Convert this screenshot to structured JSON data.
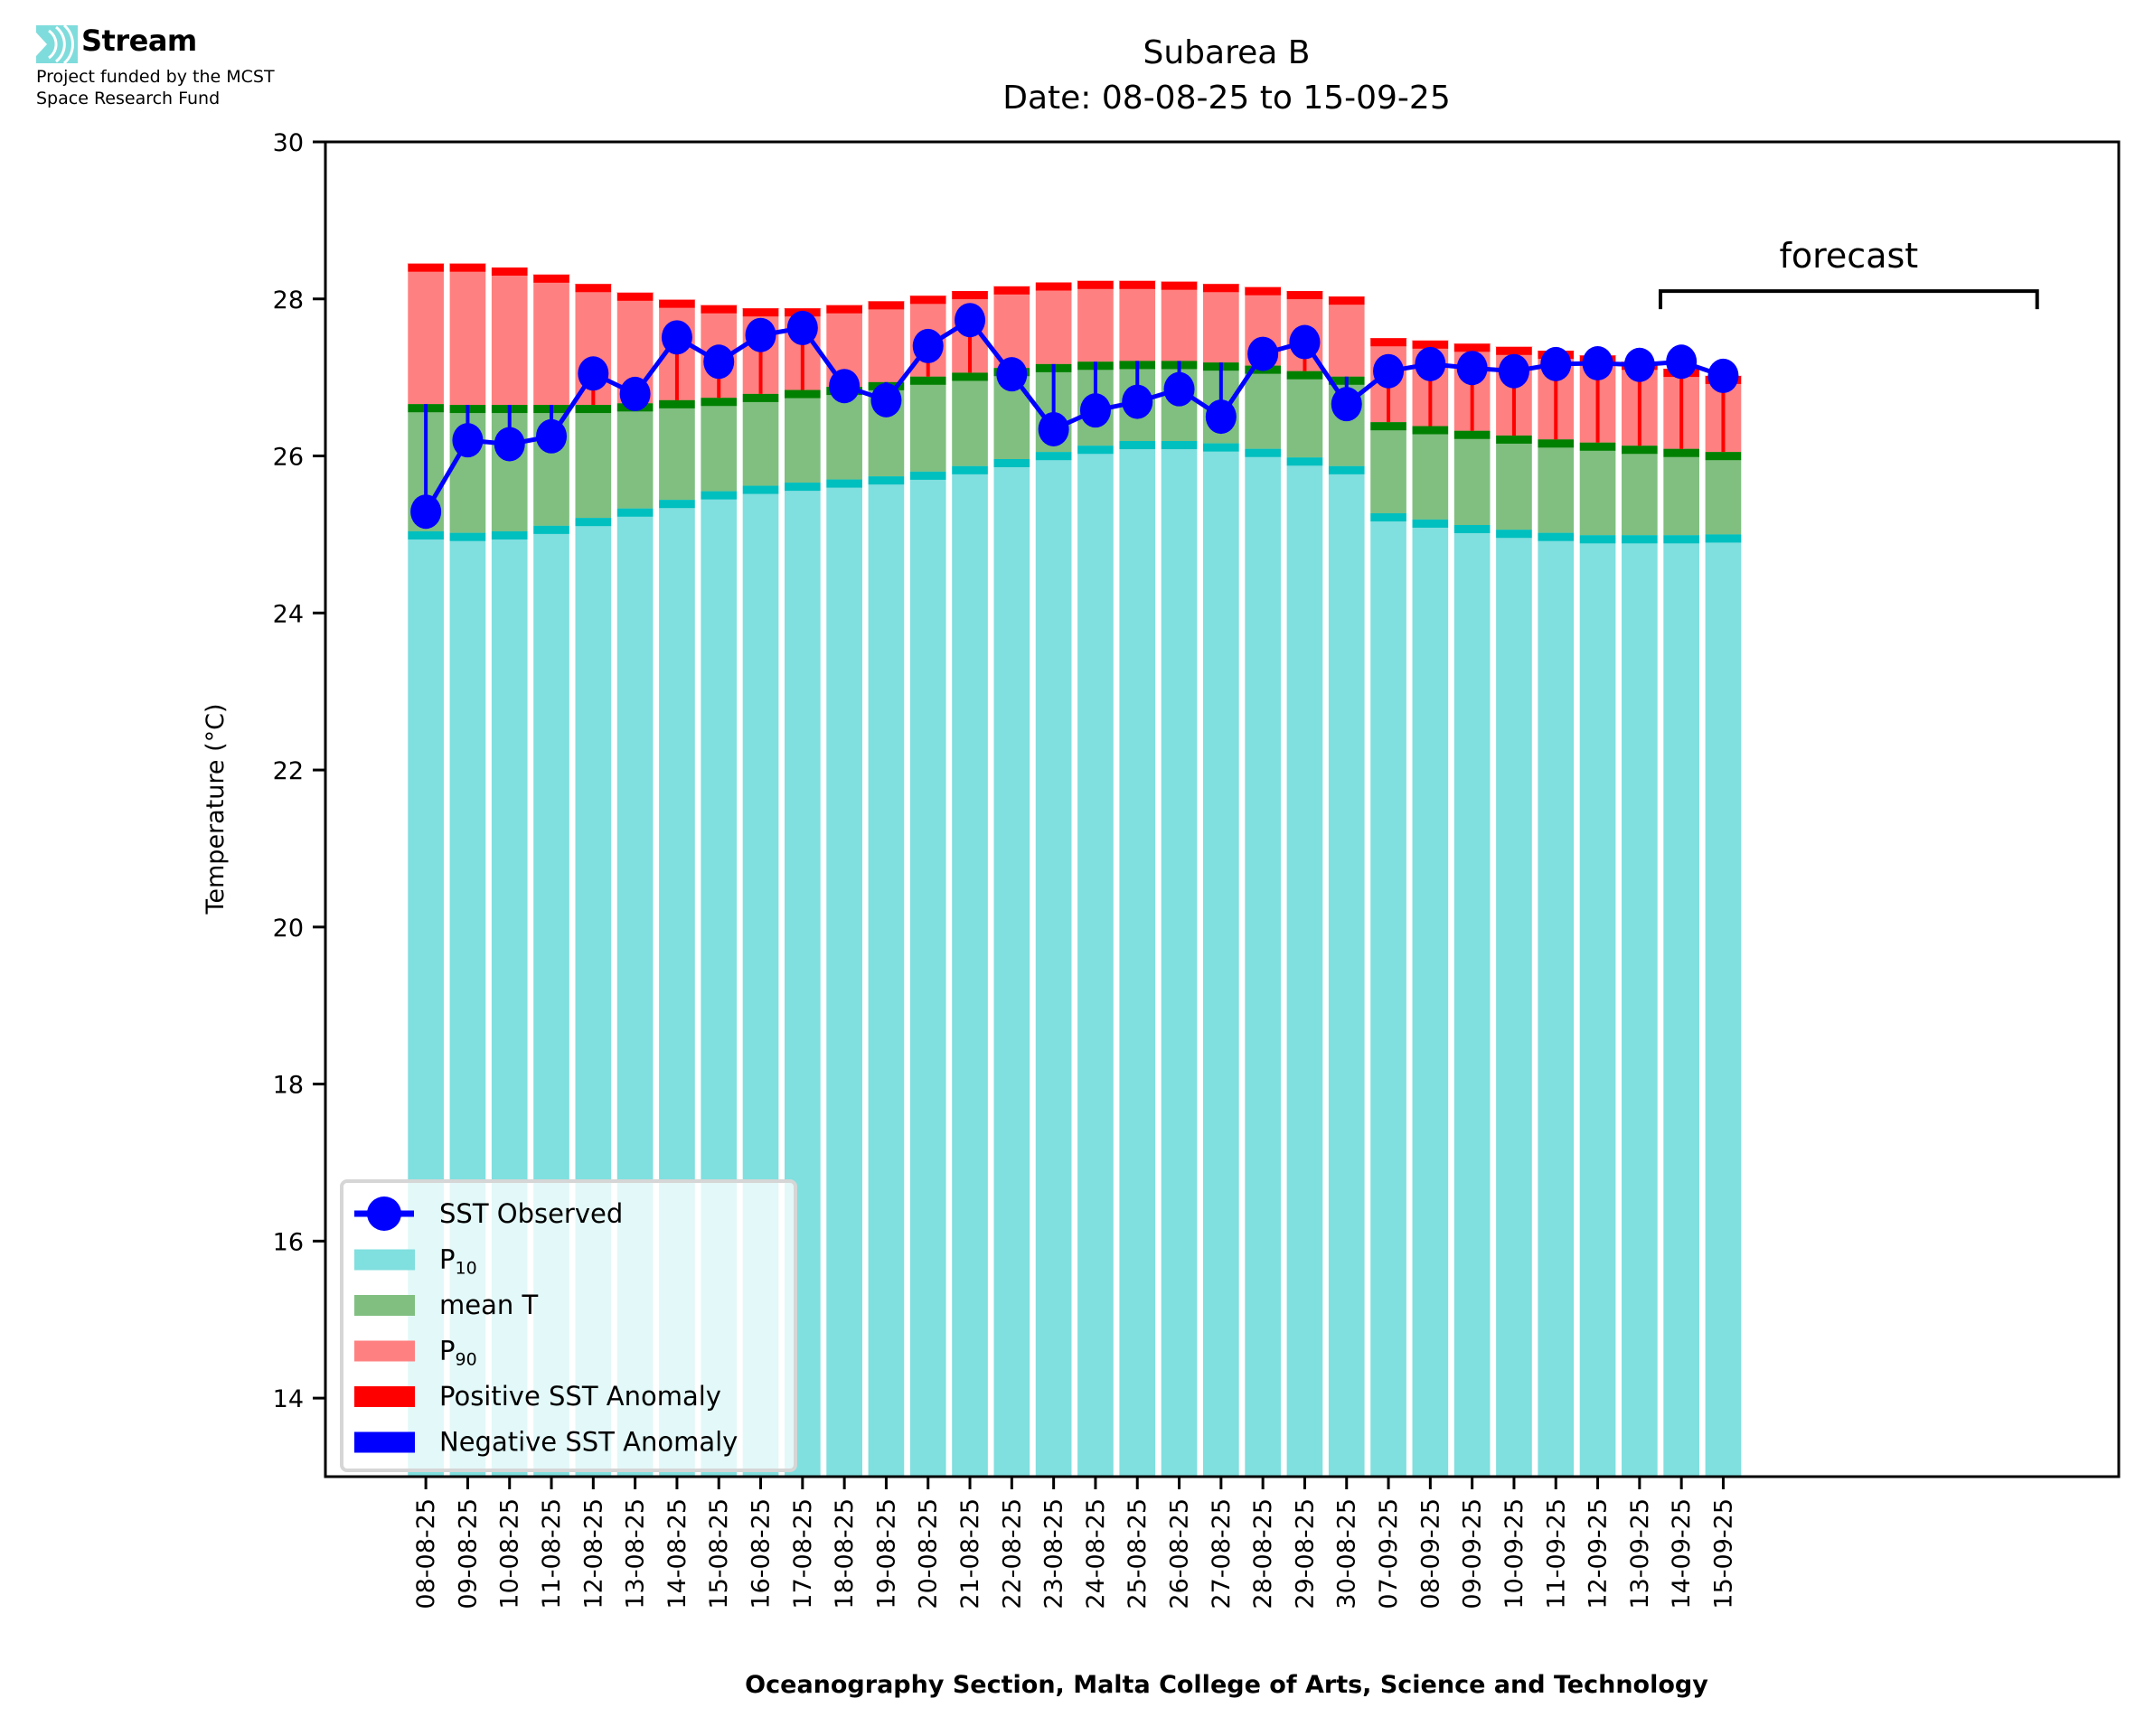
{
  "branding": {
    "name": "Stream",
    "subtitle_line1": "Project funded by the MCST",
    "subtitle_line2": "Space Research Fund",
    "logo_icon": "stream-waves-icon",
    "accent_color": "#7fdcdc"
  },
  "footer": "Oceanography Section, Malta College of Arts, Science and Technology",
  "chart_data": {
    "type": "bar",
    "title": "Subarea B",
    "subtitle": "Date: 08-08-25 to 15-09-25",
    "xlabel": "",
    "ylabel": "Temperature (°C)",
    "ylim": [
      13,
      30
    ],
    "xlim": [
      -2.4,
      40.45
    ],
    "yticks": [
      14,
      16,
      18,
      20,
      22,
      24,
      26,
      28,
      30
    ],
    "grid": false,
    "stacked_overlay": true,
    "categories": [
      "08-08-25",
      "09-08-25",
      "10-08-25",
      "11-08-25",
      "12-08-25",
      "13-08-25",
      "14-08-25",
      "15-08-25",
      "16-08-25",
      "17-08-25",
      "18-08-25",
      "19-08-25",
      "20-08-25",
      "21-08-25",
      "22-08-25",
      "23-08-25",
      "24-08-25",
      "25-08-25",
      "26-08-25",
      "27-08-25",
      "28-08-25",
      "29-08-25",
      "30-08-25",
      "07-09-25",
      "08-09-25",
      "09-09-25",
      "10-09-25",
      "11-09-25",
      "12-09-25",
      "13-09-25",
      "14-09-25",
      "15-09-25"
    ],
    "series": [
      {
        "name": "P10",
        "label_base": "P",
        "label_sub": "10",
        "kind": "bar",
        "color": "#80dfdf",
        "band_color": "#00bfbf",
        "values": [
          25.04,
          25.02,
          25.04,
          25.11,
          25.21,
          25.33,
          25.44,
          25.55,
          25.62,
          25.66,
          25.7,
          25.74,
          25.8,
          25.87,
          25.96,
          26.05,
          26.13,
          26.19,
          26.19,
          26.16,
          26.09,
          25.98,
          25.87,
          25.27,
          25.19,
          25.12,
          25.06,
          25.02,
          24.99,
          24.99,
          24.99,
          25.0
        ]
      },
      {
        "name": "mean T",
        "label_base": "mean T",
        "label_sub": "",
        "kind": "bar",
        "color": "#80bf80",
        "band_color": "#008000",
        "values": [
          26.66,
          26.65,
          26.65,
          26.65,
          26.65,
          26.67,
          26.71,
          26.74,
          26.79,
          26.84,
          26.88,
          26.94,
          27.01,
          27.06,
          27.12,
          27.17,
          27.2,
          27.21,
          27.21,
          27.19,
          27.15,
          27.08,
          27.01,
          26.43,
          26.38,
          26.32,
          26.26,
          26.21,
          26.17,
          26.13,
          26.09,
          26.05
        ]
      },
      {
        "name": "P90",
        "label_base": "P",
        "label_sub": "90",
        "kind": "bar",
        "color": "#ff8080",
        "band_color": "#ff0000",
        "values": [
          28.45,
          28.45,
          28.4,
          28.31,
          28.19,
          28.08,
          27.99,
          27.92,
          27.88,
          27.88,
          27.92,
          27.97,
          28.04,
          28.1,
          28.16,
          28.21,
          28.23,
          28.23,
          28.22,
          28.19,
          28.15,
          28.1,
          28.03,
          27.5,
          27.47,
          27.43,
          27.39,
          27.34,
          27.28,
          27.2,
          27.11,
          27.02
        ]
      },
      {
        "name": "SST Observed",
        "label_base": "SST Observed",
        "label_sub": "",
        "kind": "line",
        "color": "#0000ff",
        "values": [
          25.29,
          26.2,
          26.15,
          26.25,
          27.05,
          26.79,
          27.51,
          27.2,
          27.54,
          27.63,
          26.89,
          26.71,
          27.4,
          27.73,
          27.04,
          26.34,
          26.58,
          26.69,
          26.85,
          26.5,
          27.3,
          27.45,
          26.66,
          27.08,
          27.17,
          27.12,
          27.08,
          27.17,
          27.18,
          27.16,
          27.2,
          27.02
        ]
      }
    ],
    "legend": {
      "placement": "lower-left",
      "entries": [
        {
          "label": "SST Observed",
          "sub": "",
          "swatch": "line-marker",
          "color": "#0000ff"
        },
        {
          "label": "P",
          "sub": "10",
          "swatch": "patch",
          "color": "#80dfdf"
        },
        {
          "label": "mean T",
          "sub": "",
          "swatch": "patch",
          "color": "#80bf80"
        },
        {
          "label": "P",
          "sub": "90",
          "swatch": "patch",
          "color": "#ff8080"
        },
        {
          "label": "Positive SST Anomaly",
          "sub": "",
          "swatch": "patch",
          "color": "#ff0000"
        },
        {
          "label": "Negative SST Anomaly",
          "sub": "",
          "swatch": "patch",
          "color": "#0000ff"
        }
      ]
    },
    "anomaly_colors": {
      "positive": "#ff0000",
      "negative": "#0000ff"
    },
    "annotation": {
      "text": "forecast",
      "x_start": 29.5,
      "x_end": 38.5,
      "y": 28.1
    }
  }
}
